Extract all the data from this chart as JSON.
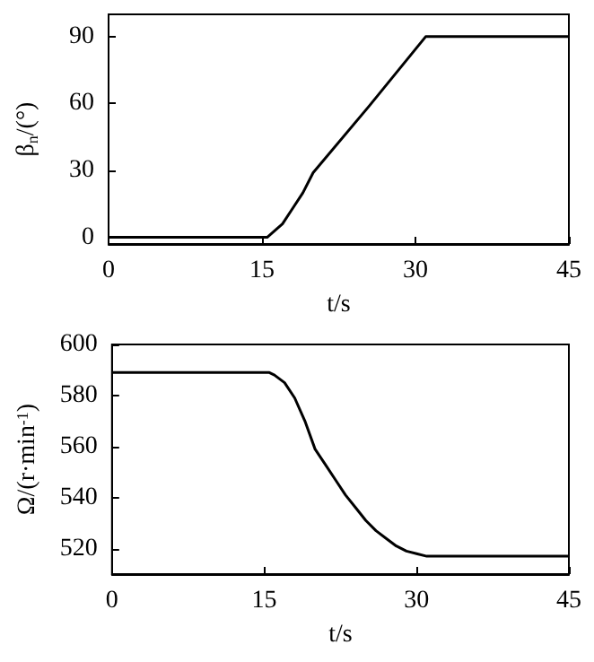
{
  "chart_data": [
    {
      "type": "line",
      "xlabel": "t/s",
      "ylabel": "β$_{n}$/(°)",
      "xlim": [
        0,
        45
      ],
      "xticks": [
        0,
        15,
        30,
        45
      ],
      "ylim": [
        -3,
        100
      ],
      "yticks": [
        0,
        30,
        60,
        90
      ],
      "grid": false,
      "line_style": "solid",
      "marker": "none",
      "series": [
        {
          "color": "#000000",
          "x": [
            0,
            15.5,
            16,
            17,
            18,
            19,
            20,
            25.5,
            31,
            45
          ],
          "values": [
            0,
            0,
            2,
            6,
            13,
            20,
            29,
            59,
            90,
            90
          ]
        }
      ]
    },
    {
      "type": "line",
      "xlabel": "t/s",
      "ylabel": "Ω/(r·min$^{-1}$)",
      "xlim": [
        0,
        45
      ],
      "xticks": [
        0,
        15,
        30,
        45
      ],
      "ylim": [
        510,
        600
      ],
      "yticks": [
        520,
        540,
        560,
        580,
        600
      ],
      "grid": false,
      "line_style": "solid",
      "marker": "none",
      "series": [
        {
          "color": "#000000",
          "x": [
            0,
            15.5,
            16,
            17,
            18,
            19,
            20,
            21,
            22,
            23,
            24,
            25,
            26,
            27,
            28,
            29,
            30,
            31,
            45
          ],
          "values": [
            589,
            589,
            588,
            585,
            579,
            570,
            559,
            553,
            547,
            541,
            536,
            531,
            527,
            524,
            521,
            519,
            518,
            517,
            517
          ]
        }
      ]
    }
  ]
}
